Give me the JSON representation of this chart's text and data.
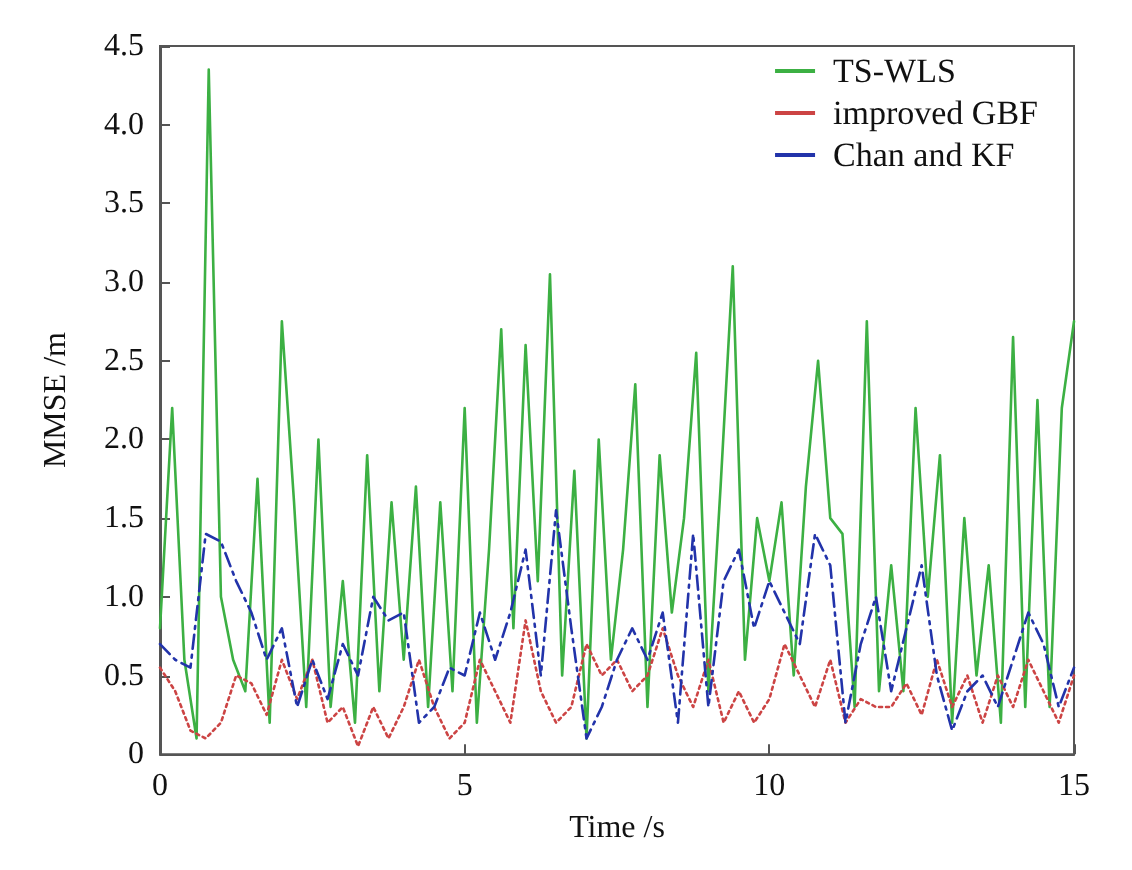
{
  "chart_data": {
    "type": "line",
    "xlabel": "Time /s",
    "ylabel": "MMSE /m",
    "xlim": [
      0,
      15
    ],
    "xticks": [
      0,
      5,
      10,
      15
    ],
    "ylim": [
      0,
      4.5
    ],
    "yticks": [
      0,
      0.5,
      {
        "value": 1,
        "label": "1.0"
      },
      1.5,
      {
        "value": 2,
        "label": "2.0"
      },
      2.5,
      {
        "value": 3,
        "label": "3.0"
      },
      3.5,
      {
        "value": 4,
        "label": "4.0"
      },
      4.5
    ],
    "grid": false,
    "legend": "top right",
    "marker": "none",
    "series": [
      {
        "name": "TS-WLS",
        "color": "#3cb043",
        "line_style": "solid",
        "x": [
          0,
          0.2,
          0.4,
          0.6,
          0.8,
          1,
          1.2,
          1.4,
          1.6,
          1.8,
          2,
          2.2,
          2.4,
          2.6,
          2.8,
          3,
          3.2,
          3.4,
          3.6,
          3.8,
          4,
          4.2,
          4.4,
          4.6,
          4.8,
          5,
          5.2,
          5.4,
          5.6,
          5.8,
          6,
          6.2,
          6.4,
          6.6,
          6.8,
          7,
          7.2,
          7.4,
          7.6,
          7.8,
          8,
          8.2,
          8.4,
          8.6,
          8.8,
          9,
          9.2,
          9.4,
          9.6,
          9.8,
          10,
          10.2,
          10.4,
          10.6,
          10.8,
          11,
          11.2,
          11.4,
          11.6,
          11.8,
          12,
          12.2,
          12.4,
          12.6,
          12.8,
          13,
          13.2,
          13.4,
          13.6,
          13.8,
          14,
          14.2,
          14.4,
          14.6,
          14.8,
          15
        ],
        "values": [
          0.8,
          2.2,
          0.6,
          0.1,
          4.35,
          1.0,
          0.6,
          0.4,
          1.75,
          0.2,
          2.75,
          1.6,
          0.3,
          2.0,
          0.3,
          1.1,
          0.2,
          1.9,
          0.4,
          1.6,
          0.6,
          1.7,
          0.3,
          1.6,
          0.4,
          2.2,
          0.2,
          1.3,
          2.7,
          0.8,
          2.6,
          1.1,
          3.05,
          0.5,
          1.8,
          0.1,
          2.0,
          0.6,
          1.3,
          2.35,
          0.3,
          1.9,
          0.9,
          1.5,
          2.55,
          0.4,
          1.7,
          3.1,
          0.6,
          1.5,
          1.1,
          1.6,
          0.5,
          1.7,
          2.5,
          1.5,
          1.4,
          0.3,
          2.75,
          0.4,
          1.2,
          0.4,
          2.2,
          1.0,
          1.9,
          0.2,
          1.5,
          0.5,
          1.2,
          0.2,
          2.65,
          0.3,
          2.25,
          0.3,
          2.2,
          2.75
        ]
      },
      {
        "name": "improved GBF",
        "color": "#cc4444",
        "line_style": "dotted",
        "x": [
          0,
          0.25,
          0.5,
          0.75,
          1,
          1.25,
          1.5,
          1.75,
          2,
          2.25,
          2.5,
          2.75,
          3,
          3.25,
          3.5,
          3.75,
          4,
          4.25,
          4.5,
          4.75,
          5,
          5.25,
          5.5,
          5.75,
          6,
          6.25,
          6.5,
          6.75,
          7,
          7.25,
          7.5,
          7.75,
          8,
          8.25,
          8.5,
          8.75,
          9,
          9.25,
          9.5,
          9.75,
          10,
          10.25,
          10.5,
          10.75,
          11,
          11.25,
          11.5,
          11.75,
          12,
          12.25,
          12.5,
          12.75,
          13,
          13.25,
          13.5,
          13.75,
          14,
          14.25,
          14.5,
          14.75,
          15
        ],
        "values": [
          0.55,
          0.4,
          0.15,
          0.1,
          0.2,
          0.5,
          0.45,
          0.25,
          0.6,
          0.35,
          0.6,
          0.2,
          0.3,
          0.05,
          0.3,
          0.1,
          0.3,
          0.6,
          0.3,
          0.1,
          0.2,
          0.6,
          0.4,
          0.2,
          0.85,
          0.4,
          0.2,
          0.3,
          0.7,
          0.5,
          0.6,
          0.4,
          0.5,
          0.8,
          0.5,
          0.3,
          0.6,
          0.2,
          0.4,
          0.2,
          0.35,
          0.7,
          0.5,
          0.3,
          0.6,
          0.2,
          0.35,
          0.3,
          0.3,
          0.45,
          0.25,
          0.6,
          0.3,
          0.5,
          0.2,
          0.5,
          0.3,
          0.6,
          0.4,
          0.2,
          0.5
        ]
      },
      {
        "name": "Chan and KF",
        "color": "#2233aa",
        "line_style": "dashdot",
        "x": [
          0,
          0.25,
          0.5,
          0.75,
          1,
          1.25,
          1.5,
          1.75,
          2,
          2.25,
          2.5,
          2.75,
          3,
          3.25,
          3.5,
          3.75,
          4,
          4.25,
          4.5,
          4.75,
          5,
          5.25,
          5.5,
          5.75,
          6,
          6.25,
          6.5,
          6.75,
          7,
          7.25,
          7.5,
          7.75,
          8,
          8.25,
          8.5,
          8.75,
          9,
          9.25,
          9.5,
          9.75,
          10,
          10.25,
          10.5,
          10.75,
          11,
          11.25,
          11.5,
          11.75,
          12,
          12.25,
          12.5,
          12.75,
          13,
          13.25,
          13.5,
          13.75,
          14,
          14.25,
          14.5,
          14.75,
          15
        ],
        "values": [
          0.7,
          0.6,
          0.55,
          1.4,
          1.35,
          1.1,
          0.9,
          0.6,
          0.8,
          0.3,
          0.6,
          0.35,
          0.7,
          0.5,
          1.0,
          0.85,
          0.9,
          0.2,
          0.3,
          0.55,
          0.5,
          0.9,
          0.6,
          0.9,
          1.3,
          0.5,
          1.55,
          0.8,
          0.1,
          0.3,
          0.6,
          0.8,
          0.6,
          0.9,
          0.2,
          1.4,
          0.3,
          1.1,
          1.3,
          0.8,
          1.1,
          0.9,
          0.7,
          1.4,
          1.2,
          0.2,
          0.7,
          1.0,
          0.4,
          0.8,
          1.2,
          0.5,
          0.15,
          0.4,
          0.5,
          0.3,
          0.6,
          0.9,
          0.7,
          0.3,
          0.55
        ]
      }
    ]
  }
}
